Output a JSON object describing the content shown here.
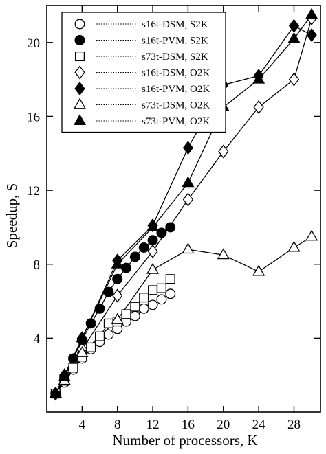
{
  "chart_data": {
    "type": "line",
    "xlabel": "Number of processors, K",
    "ylabel": "Speedup, S",
    "xlim": [
      0,
      31
    ],
    "ylim": [
      0,
      22
    ],
    "xticks": [
      4,
      8,
      12,
      16,
      20,
      24,
      28
    ],
    "yticks": [
      4,
      8,
      12,
      16,
      20
    ],
    "grid": false,
    "legend_position": "top-left",
    "series": [
      {
        "name": "s16t-DSM, S2K",
        "marker": "circle-open",
        "x": [
          1,
          2,
          3,
          4,
          5,
          6,
          7,
          8,
          9,
          10,
          11,
          12,
          13,
          14
        ],
        "y": [
          1.0,
          1.6,
          2.3,
          2.9,
          3.4,
          3.8,
          4.2,
          4.5,
          4.9,
          5.2,
          5.6,
          5.8,
          6.1,
          6.4
        ]
      },
      {
        "name": "s16t-PVM, S2K",
        "marker": "circle-filled",
        "x": [
          1,
          2,
          3,
          4,
          5,
          6,
          7,
          8,
          9,
          10,
          11,
          12,
          13,
          14
        ],
        "y": [
          1.0,
          1.9,
          2.9,
          3.9,
          4.8,
          5.6,
          6.5,
          7.2,
          7.8,
          8.4,
          8.9,
          9.3,
          9.7,
          10.0
        ]
      },
      {
        "name": "s73t-DSM, S2K",
        "marker": "square-open",
        "x": [
          1,
          2,
          3,
          4,
          5,
          6,
          7,
          8,
          9,
          10,
          11,
          12,
          13,
          14
        ],
        "y": [
          1.0,
          1.7,
          2.4,
          3.0,
          3.5,
          4.1,
          4.8,
          4.9,
          5.3,
          5.7,
          6.2,
          6.6,
          6.7,
          7.2
        ]
      },
      {
        "name": "s16t-DSM, O2K",
        "marker": "diamond-open",
        "x": [
          1,
          2,
          4,
          8,
          12,
          16,
          20,
          24,
          28,
          30
        ],
        "y": [
          1.0,
          1.8,
          3.4,
          6.3,
          8.7,
          11.5,
          14.1,
          16.5,
          18.0,
          21.3
        ]
      },
      {
        "name": "s16t-PVM, O2K",
        "marker": "diamond-filled",
        "x": [
          1,
          2,
          4,
          8,
          12,
          16,
          20,
          24,
          28,
          30
        ],
        "y": [
          1.0,
          2.0,
          4.0,
          8.2,
          10.1,
          14.3,
          17.7,
          18.2,
          20.9,
          20.4
        ]
      },
      {
        "name": "s73t-DSM, O2K",
        "marker": "triangle-open",
        "x": [
          1,
          2,
          4,
          8,
          12,
          16,
          20,
          24,
          28,
          30
        ],
        "y": [
          1.0,
          1.7,
          3.2,
          5.0,
          7.7,
          8.8,
          8.5,
          7.6,
          8.9,
          9.5
        ]
      },
      {
        "name": "s73t-PVM, O2K",
        "marker": "triangle-filled",
        "x": [
          1,
          2,
          4,
          8,
          12,
          16,
          20,
          24,
          28,
          30
        ],
        "y": [
          1.0,
          1.9,
          4.0,
          8.0,
          10.0,
          12.4,
          16.5,
          18.0,
          20.2,
          21.5
        ]
      }
    ]
  }
}
